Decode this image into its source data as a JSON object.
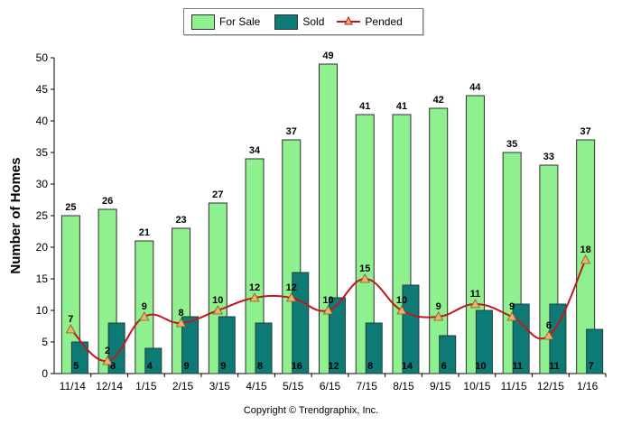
{
  "legend": {
    "for_sale": "For Sale",
    "sold": "Sold",
    "pended": "Pended"
  },
  "copyright": "Copyright © Trendgraphix, Inc.",
  "chart_data": {
    "type": "bar",
    "ylabel": "Number of Homes",
    "xlabel": "",
    "ylim": [
      0,
      50
    ],
    "yticks": [
      0,
      5,
      10,
      15,
      20,
      25,
      30,
      35,
      40,
      45,
      50
    ],
    "grid": false,
    "legend_position": "top-center",
    "categories": [
      "11/14",
      "12/14",
      "1/15",
      "2/15",
      "3/15",
      "4/15",
      "5/15",
      "6/15",
      "7/15",
      "8/15",
      "9/15",
      "10/15",
      "11/15",
      "12/15",
      "1/16"
    ],
    "series": [
      {
        "name": "For Sale",
        "type": "bar",
        "color": "#8ff08f",
        "values": [
          25,
          26,
          21,
          23,
          27,
          34,
          37,
          49,
          41,
          41,
          42,
          44,
          35,
          33,
          37
        ]
      },
      {
        "name": "Sold",
        "type": "bar",
        "color": "#0e7a76",
        "values": [
          5,
          8,
          4,
          9,
          9,
          8,
          16,
          12,
          8,
          14,
          6,
          10,
          11,
          11,
          7
        ]
      },
      {
        "name": "Pended",
        "type": "line",
        "color": "#c0181d",
        "marker_color": "#e8b46a",
        "values": [
          7,
          2,
          9,
          8,
          10,
          12,
          12,
          10,
          15,
          10,
          9,
          11,
          9,
          6,
          18
        ]
      }
    ]
  }
}
